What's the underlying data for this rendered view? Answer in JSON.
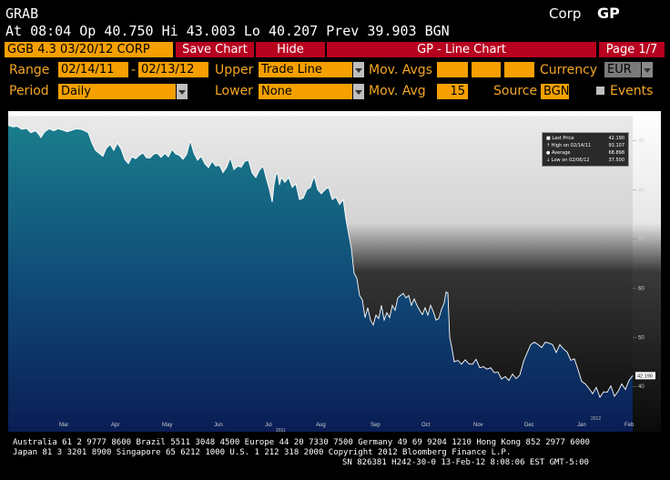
{
  "header": {
    "ticker": "GRAB",
    "market": "Corp",
    "function": "GP",
    "quote": "At 08:04   Op 40.750   Hi 43.003   Lo 40.207   Prev 39.903   BGN"
  },
  "toolbar": {
    "security": "GGB 4.3 03/20/12 CORP",
    "save_label": "Save Chart",
    "hide_label": "Hide",
    "chart_title": "GP - Line Chart",
    "page": "Page 1/7"
  },
  "controls": {
    "range_label": "Range",
    "range_start": "02/14/11",
    "range_sep": "-",
    "range_end": "02/13/12",
    "upper_label": "Upper",
    "upper_value": "Trade Line",
    "mavgs_label": "Mov. Avgs",
    "currency_label": "Currency",
    "currency_value": "EUR",
    "period_label": "Period",
    "period_value": "Daily",
    "lower_label": "Lower",
    "lower_value": "None",
    "mavg_label": "Mov. Avg",
    "mavg_value": "15",
    "source_label": "Source",
    "source_value": "BGN",
    "events_label": "Events"
  },
  "legend": {
    "lines": [
      [
        "Last Price",
        "42.190"
      ],
      [
        "High on 02/14/11",
        "93.107"
      ],
      [
        "Average",
        "68.898"
      ],
      [
        "Low on 02/06/12",
        "37.500"
      ]
    ]
  },
  "last_price_tag": "42.190",
  "footer": {
    "line1": "Australia 61 2 9777 8600 Brazil 5511 3048 4500 Europe 44 20 7330 7500 Germany 49 69 9204 1210 Hong Kong 852 2977 6000",
    "line2": "Japan 81 3 3201 8900        Singapore 65 6212 1000        U.S. 1 212 318 2000        Copyright 2012 Bloomberg Finance L.P.",
    "line3": "SN 826381 H242-30-0 13-Feb-12  8:08:06 EST  GMT-5:00"
  },
  "colors": {
    "orange": "#f5a623",
    "red_button": "#b8001f",
    "area_top": "#1a7d8c",
    "area_bottom": "#0a1d55"
  },
  "chart_data": {
    "type": "area",
    "x_ticks": [
      "Mar",
      "Apr",
      "May",
      "Jun",
      "Jul",
      "Aug",
      "Sep",
      "Oct",
      "Nov",
      "Dec",
      "Jan",
      "Feb"
    ],
    "x_year_labels": [
      "2011",
      "2012"
    ],
    "y_ticks": [
      40,
      50,
      60,
      70,
      80,
      90
    ],
    "ylim": [
      33,
      96
    ],
    "series": [
      {
        "values": [
          [
            0,
            93.1
          ],
          [
            5,
            92.8
          ],
          [
            10,
            92.9
          ],
          [
            15,
            92.3
          ],
          [
            20,
            92.5
          ],
          [
            25,
            91.6
          ],
          [
            30,
            92.0
          ],
          [
            33,
            91.4
          ],
          [
            36,
            90.6
          ],
          [
            40,
            91.8
          ],
          [
            45,
            92.4
          ],
          [
            50,
            92.0
          ],
          [
            55,
            92.4
          ],
          [
            60,
            92.1
          ],
          [
            65,
            91.8
          ],
          [
            70,
            92.1
          ],
          [
            75,
            92.4
          ],
          [
            80,
            92.3
          ],
          [
            84,
            92.0
          ],
          [
            88,
            91.6
          ],
          [
            92,
            89.5
          ],
          [
            96,
            88.0
          ],
          [
            100,
            87.4
          ],
          [
            104,
            86.8
          ],
          [
            108,
            88.5
          ],
          [
            112,
            89.2
          ],
          [
            116,
            88.0
          ],
          [
            120,
            89.5
          ],
          [
            124,
            88.3
          ],
          [
            128,
            86.2
          ],
          [
            132,
            85.3
          ],
          [
            136,
            86.7
          ],
          [
            140,
            86.3
          ],
          [
            144,
            87.0
          ],
          [
            148,
            87.5
          ],
          [
            152,
            86.5
          ],
          [
            156,
            86.5
          ],
          [
            160,
            87.3
          ],
          [
            164,
            87.4
          ],
          [
            168,
            86.6
          ],
          [
            172,
            87.4
          ],
          [
            176,
            86.7
          ],
          [
            180,
            88.2
          ],
          [
            184,
            87.3
          ],
          [
            188,
            87.0
          ],
          [
            192,
            86.2
          ],
          [
            196,
            87.2
          ],
          [
            200,
            90.0
          ],
          [
            204,
            87.5
          ],
          [
            208,
            86.0
          ],
          [
            212,
            86.8
          ],
          [
            216,
            85.3
          ],
          [
            220,
            84.5
          ],
          [
            224,
            85.8
          ],
          [
            228,
            84.8
          ],
          [
            232,
            85.0
          ],
          [
            236,
            83.5
          ],
          [
            240,
            84.6
          ],
          [
            244,
            86.5
          ],
          [
            248,
            84.1
          ],
          [
            252,
            84.8
          ],
          [
            256,
            84.6
          ],
          [
            260,
            85.8
          ],
          [
            264,
            86.0
          ],
          [
            268,
            83.4
          ],
          [
            272,
            82.5
          ],
          [
            276,
            84.0
          ],
          [
            280,
            84.8
          ],
          [
            284,
            82.0
          ],
          [
            287,
            80.0
          ],
          [
            290,
            77.5
          ],
          [
            292,
            81.0
          ],
          [
            294,
            83.0
          ],
          [
            296,
            83.4
          ],
          [
            298,
            81.0
          ],
          [
            300,
            82.5
          ],
          [
            304,
            81.5
          ],
          [
            308,
            82.5
          ],
          [
            312,
            80.5
          ],
          [
            316,
            81.2
          ],
          [
            320,
            78.0
          ],
          [
            324,
            78.3
          ],
          [
            328,
            80.0
          ],
          [
            332,
            80.5
          ],
          [
            336,
            82.8
          ],
          [
            340,
            80.0
          ],
          [
            344,
            79.2
          ],
          [
            348,
            80.0
          ],
          [
            352,
            80.5
          ],
          [
            356,
            78.0
          ],
          [
            360,
            78.5
          ],
          [
            364,
            77.0
          ],
          [
            368,
            78.0
          ],
          [
            371,
            74.0
          ],
          [
            374,
            71.0
          ],
          [
            377,
            68.0
          ],
          [
            380,
            63.0
          ],
          [
            383,
            62.0
          ],
          [
            386,
            58.5
          ],
          [
            389,
            57.6
          ],
          [
            392,
            54.0
          ],
          [
            395,
            56.0
          ],
          [
            398,
            53.5
          ],
          [
            401,
            52.5
          ],
          [
            404,
            54.5
          ],
          [
            407,
            53.8
          ],
          [
            410,
            56.5
          ],
          [
            413,
            53.5
          ],
          [
            416,
            55.0
          ],
          [
            419,
            54.0
          ],
          [
            422,
            56.5
          ],
          [
            425,
            55.5
          ],
          [
            428,
            58.0
          ],
          [
            431,
            58.5
          ],
          [
            434,
            58.9
          ],
          [
            437,
            58.0
          ],
          [
            440,
            58.5
          ],
          [
            443,
            56.5
          ],
          [
            446,
            57.8
          ],
          [
            449,
            56.5
          ],
          [
            452,
            55.5
          ],
          [
            455,
            54.6
          ],
          [
            458,
            56.0
          ],
          [
            461,
            54.5
          ],
          [
            464,
            56.5
          ],
          [
            467,
            55.2
          ],
          [
            470,
            53.5
          ],
          [
            473,
            53.8
          ],
          [
            476,
            55.7
          ],
          [
            479,
            57.0
          ],
          [
            481,
            59.2
          ],
          [
            483,
            59.0
          ],
          [
            485,
            50.0
          ],
          [
            487,
            48.2
          ],
          [
            490,
            45.0
          ],
          [
            494,
            45.3
          ],
          [
            498,
            44.5
          ],
          [
            502,
            45.4
          ],
          [
            506,
            44.6
          ],
          [
            510,
            44.5
          ],
          [
            514,
            45.5
          ],
          [
            518,
            43.8
          ],
          [
            522,
            44.0
          ],
          [
            526,
            43.5
          ],
          [
            530,
            43.8
          ],
          [
            534,
            42.8
          ],
          [
            538,
            42.9
          ],
          [
            542,
            41.5
          ],
          [
            546,
            42.0
          ],
          [
            550,
            41.2
          ],
          [
            554,
            42.5
          ],
          [
            558,
            41.6
          ],
          [
            562,
            42.3
          ],
          [
            566,
            45.0
          ],
          [
            570,
            46.8
          ],
          [
            574,
            48.5
          ],
          [
            578,
            49.0
          ],
          [
            582,
            48.5
          ],
          [
            586,
            47.9
          ],
          [
            590,
            49.0
          ],
          [
            594,
            48.8
          ],
          [
            598,
            48.5
          ],
          [
            602,
            46.9
          ],
          [
            606,
            48.5
          ],
          [
            610,
            47.6
          ],
          [
            614,
            47.0
          ],
          [
            618,
            45.3
          ],
          [
            622,
            45.6
          ],
          [
            626,
            43.4
          ],
          [
            630,
            41.0
          ],
          [
            634,
            40.5
          ],
          [
            638,
            39.6
          ],
          [
            642,
            38.5
          ],
          [
            646,
            39.8
          ],
          [
            650,
            37.8
          ],
          [
            654,
            38.9
          ],
          [
            658,
            38.8
          ],
          [
            662,
            40.1
          ],
          [
            666,
            38.0
          ],
          [
            670,
            39.0
          ],
          [
            674,
            40.5
          ],
          [
            678,
            39.4
          ],
          [
            682,
            41.2
          ],
          [
            686,
            42.19
          ]
        ]
      }
    ]
  }
}
